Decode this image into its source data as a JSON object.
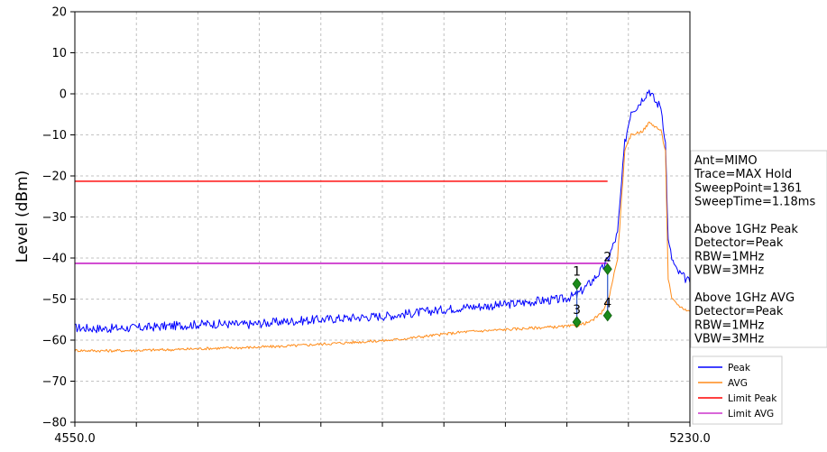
{
  "chart_data": {
    "type": "line",
    "ylabel": "Level (dBm)",
    "xlim": [
      4550.0,
      5230.0
    ],
    "ylim": [
      -80,
      20
    ],
    "yticks": [
      20,
      10,
      0,
      -10,
      -20,
      -30,
      -40,
      -50,
      -60,
      -70,
      -80
    ],
    "xtick_labels": [
      "4550.0",
      "5230.0"
    ],
    "grid": true,
    "legend_position": "lower-right",
    "series": [
      {
        "name": "Peak",
        "color": "#0000ff",
        "x": [
          4550,
          4580,
          4620,
          4660,
          4700,
          4740,
          4780,
          4820,
          4860,
          4900,
          4940,
          4980,
          5020,
          5060,
          5090,
          5105,
          5120,
          5132,
          5140,
          5150,
          5158,
          5165,
          5172,
          5178,
          5185,
          5192,
          5198,
          5203,
          5206,
          5210,
          5215,
          5220,
          5225,
          5230
        ],
        "y": [
          -57,
          -57.2,
          -57,
          -56.5,
          -56,
          -56.2,
          -55.5,
          -55,
          -54.5,
          -54,
          -53,
          -52,
          -51.5,
          -50.5,
          -50,
          -49,
          -46,
          -43,
          -40,
          -34,
          -12,
          -4,
          -3,
          -1,
          1,
          -2,
          -3,
          -12,
          -36,
          -40,
          -43,
          -44,
          -45,
          -46
        ]
      },
      {
        "name": "AVG",
        "color": "#ff8c1a",
        "x": [
          4550,
          4580,
          4620,
          4660,
          4700,
          4740,
          4780,
          4820,
          4860,
          4900,
          4940,
          4980,
          5020,
          5060,
          5090,
          5105,
          5120,
          5132,
          5140,
          5150,
          5158,
          5165,
          5172,
          5178,
          5185,
          5192,
          5198,
          5203,
          5206,
          5210,
          5215,
          5220,
          5225,
          5230
        ],
        "y": [
          -62.5,
          -62.6,
          -62.5,
          -62.3,
          -62,
          -61.8,
          -61.5,
          -61,
          -60.5,
          -60,
          -59,
          -58,
          -57.5,
          -57,
          -56.7,
          -56.5,
          -55.5,
          -53.5,
          -50,
          -40,
          -14,
          -10,
          -9.5,
          -9,
          -7,
          -8,
          -9,
          -14,
          -45,
          -50,
          -51,
          -52,
          -52.5,
          -53
        ]
      },
      {
        "name": "Limit Peak",
        "color": "#ff3333",
        "x": [
          4550,
          5139
        ],
        "y": [
          -21.3,
          -21.3
        ]
      },
      {
        "name": "Limit AVG",
        "color": "#cc33cc",
        "x": [
          4550,
          5139
        ],
        "y": [
          -41.3,
          -41.3
        ]
      }
    ],
    "markers": [
      {
        "label": "1",
        "x": 5105,
        "y": -46.3
      },
      {
        "label": "2",
        "x": 5139,
        "y": -42.7
      },
      {
        "label": "3",
        "x": 5105,
        "y": -55.6
      },
      {
        "label": "4",
        "x": 5139,
        "y": -54.0
      }
    ]
  },
  "info_box": {
    "lines": [
      "Ant=MIMO",
      "Trace=MAX Hold",
      "SweepPoint=1361",
      "SweepTime=1.18ms",
      "",
      "Above 1GHz Peak",
      "Detector=Peak",
      "RBW=1MHz",
      "VBW=3MHz",
      "",
      "Above 1GHz AVG",
      "Detector=Peak",
      "RBW=1MHz",
      "VBW=3MHz"
    ]
  },
  "legend": {
    "entries": [
      {
        "label": "Peak",
        "color": "#0000ff"
      },
      {
        "label": "AVG",
        "color": "#ff8c1a"
      },
      {
        "label": "Limit Peak",
        "color": "#ff0000"
      },
      {
        "label": "Limit AVG",
        "color": "#cc33cc"
      }
    ]
  }
}
